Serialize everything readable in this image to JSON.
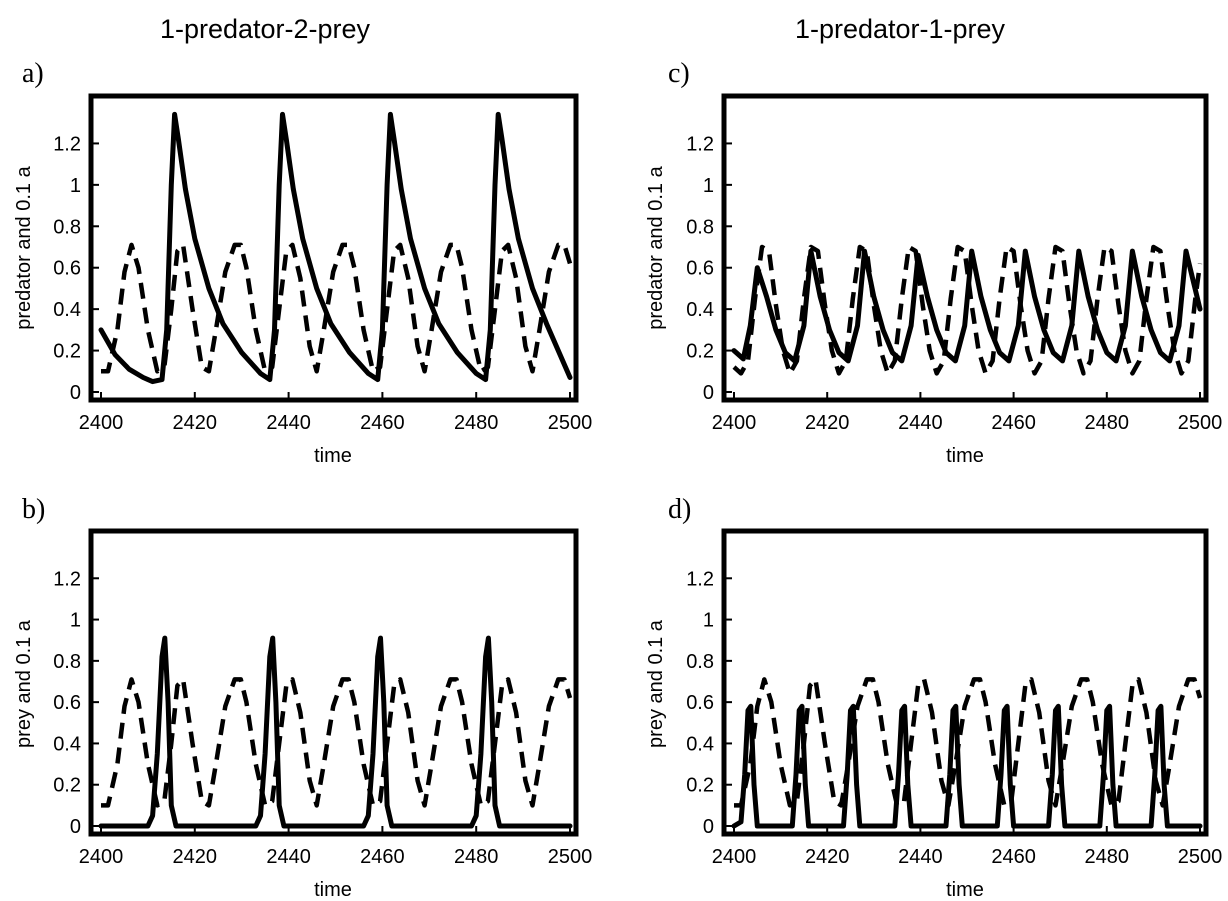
{
  "column_titles": [
    "1-predator-2-prey",
    "1-predator-1-prey"
  ],
  "chart_data": [
    {
      "panel": "a)",
      "type": "line",
      "xlabel": "time",
      "ylabel": "predator and 0.1 a",
      "xlim": [
        2400,
        2500
      ],
      "ylim": [
        0,
        1.4
      ],
      "xticks": [
        2400,
        2420,
        2440,
        2460,
        2480,
        2500
      ],
      "yticks": [
        0,
        0.2,
        0.4,
        0.6,
        0.8,
        1,
        1.2
      ],
      "grid": false,
      "series": [
        {
          "style": "solid",
          "x": [
            2400,
            2403,
            2406,
            2409,
            2411,
            2413,
            2414,
            2415,
            2415.7,
            2416.5,
            2418,
            2420,
            2423,
            2426,
            2430,
            2434,
            2436,
            2437,
            2438,
            2438.7,
            2439.5,
            2441,
            2443,
            2446,
            2449,
            2453,
            2457,
            2459,
            2460,
            2461,
            2461.7,
            2462.5,
            2464,
            2466,
            2469,
            2472,
            2476,
            2480,
            2482,
            2483,
            2484,
            2484.7,
            2485.5,
            2487,
            2489,
            2492,
            2495,
            2500
          ],
          "y": [
            0.3,
            0.18,
            0.11,
            0.07,
            0.05,
            0.06,
            0.3,
            1.0,
            1.34,
            1.22,
            0.98,
            0.74,
            0.5,
            0.33,
            0.19,
            0.09,
            0.06,
            0.3,
            1.0,
            1.34,
            1.22,
            0.98,
            0.74,
            0.5,
            0.33,
            0.19,
            0.09,
            0.06,
            0.3,
            1.0,
            1.34,
            1.22,
            0.98,
            0.74,
            0.5,
            0.33,
            0.19,
            0.09,
            0.06,
            0.3,
            1.0,
            1.34,
            1.22,
            0.98,
            0.74,
            0.5,
            0.33,
            0.07
          ]
        },
        {
          "style": "dashed",
          "x": [
            2400,
            2401.5,
            2403.5,
            2405,
            2406.5,
            2408,
            2410,
            2412,
            2413.5,
            2415,
            2416.3,
            2417.5,
            2419.5,
            2421.5,
            2423,
            2424.5,
            2426.5,
            2428.5,
            2429.8,
            2431,
            2433,
            2435,
            2436.5,
            2438,
            2439.5,
            2440.8,
            2442.5,
            2444.5,
            2446,
            2447.5,
            2449.5,
            2451.5,
            2452.8,
            2454,
            2456,
            2458,
            2459.5,
            2461,
            2462.5,
            2463.8,
            2465.5,
            2467.5,
            2469,
            2470.5,
            2472.5,
            2474.5,
            2475.8,
            2477,
            2479,
            2481,
            2482.5,
            2484,
            2485.5,
            2486.8,
            2488.5,
            2490.5,
            2492,
            2493.5,
            2495.5,
            2497.5,
            2498.8,
            2500
          ],
          "y": [
            0.1,
            0.1,
            0.3,
            0.58,
            0.71,
            0.6,
            0.3,
            0.1,
            0.12,
            0.4,
            0.68,
            0.71,
            0.4,
            0.12,
            0.1,
            0.3,
            0.58,
            0.71,
            0.71,
            0.6,
            0.3,
            0.1,
            0.12,
            0.4,
            0.68,
            0.71,
            0.55,
            0.22,
            0.1,
            0.3,
            0.58,
            0.71,
            0.71,
            0.6,
            0.3,
            0.1,
            0.12,
            0.4,
            0.68,
            0.71,
            0.55,
            0.22,
            0.1,
            0.3,
            0.58,
            0.71,
            0.71,
            0.6,
            0.3,
            0.1,
            0.12,
            0.4,
            0.68,
            0.71,
            0.55,
            0.22,
            0.1,
            0.3,
            0.58,
            0.71,
            0.71,
            0.62
          ]
        }
      ]
    },
    {
      "panel": "c)",
      "type": "line",
      "xlabel": "time",
      "ylabel": "predator and 0.1 a",
      "xlim": [
        2400,
        2500
      ],
      "ylim": [
        0,
        1.4
      ],
      "xticks": [
        2400,
        2420,
        2440,
        2460,
        2480,
        2500
      ],
      "yticks": [
        0,
        0.2,
        0.4,
        0.6,
        0.8,
        1,
        1.2
      ],
      "grid": false,
      "series": [
        {
          "style": "solid",
          "x": [
            2400,
            2402,
            2403.5,
            2405,
            2407,
            2409,
            2411,
            2413,
            2415,
            2416.5,
            2418.5,
            2420.5,
            2422.5,
            2424.5,
            2426.5,
            2428,
            2430,
            2432,
            2434,
            2436,
            2438,
            2439.5,
            2441.5,
            2443.5,
            2445.5,
            2447.5,
            2449.5,
            2451,
            2453,
            2455,
            2457,
            2459,
            2461,
            2462.5,
            2464.5,
            2466.5,
            2468.5,
            2470.5,
            2472.5,
            2474,
            2476,
            2478,
            2480,
            2482,
            2484,
            2485.5,
            2487.5,
            2489.5,
            2491.5,
            2493.5,
            2495.5,
            2497,
            2500
          ],
          "y": [
            0.2,
            0.16,
            0.32,
            0.6,
            0.46,
            0.3,
            0.19,
            0.15,
            0.32,
            0.68,
            0.46,
            0.3,
            0.19,
            0.15,
            0.32,
            0.68,
            0.46,
            0.3,
            0.19,
            0.15,
            0.32,
            0.66,
            0.46,
            0.3,
            0.19,
            0.15,
            0.32,
            0.68,
            0.46,
            0.3,
            0.19,
            0.15,
            0.32,
            0.68,
            0.46,
            0.3,
            0.19,
            0.15,
            0.32,
            0.68,
            0.46,
            0.3,
            0.19,
            0.15,
            0.32,
            0.68,
            0.46,
            0.3,
            0.19,
            0.15,
            0.32,
            0.68,
            0.4
          ]
        },
        {
          "style": "dashed",
          "x": [
            2400,
            2401.5,
            2403,
            2404.5,
            2406,
            2407.5,
            2409,
            2410.5,
            2412,
            2413.5,
            2415,
            2416.5,
            2418,
            2419.5,
            2421,
            2422.5,
            2424,
            2425.5,
            2427,
            2428.5,
            2430,
            2431.5,
            2433,
            2434.5,
            2436,
            2437.5,
            2439,
            2440.5,
            2442,
            2443.5,
            2445,
            2446.5,
            2448,
            2449.5,
            2451,
            2452.5,
            2454,
            2455.5,
            2457,
            2458.5,
            2460,
            2461.5,
            2463,
            2464.5,
            2466,
            2467.5,
            2469,
            2470.5,
            2472,
            2473.5,
            2475,
            2476.5,
            2478,
            2479.5,
            2481,
            2482.5,
            2484,
            2485.5,
            2487,
            2488.5,
            2490,
            2491.5,
            2493,
            2494.5,
            2496,
            2497.5,
            2499,
            2500
          ],
          "y": [
            0.12,
            0.09,
            0.15,
            0.45,
            0.7,
            0.68,
            0.42,
            0.2,
            0.09,
            0.15,
            0.45,
            0.7,
            0.68,
            0.42,
            0.2,
            0.09,
            0.15,
            0.45,
            0.7,
            0.68,
            0.42,
            0.2,
            0.09,
            0.15,
            0.45,
            0.7,
            0.68,
            0.42,
            0.2,
            0.09,
            0.15,
            0.45,
            0.7,
            0.68,
            0.42,
            0.2,
            0.09,
            0.15,
            0.45,
            0.7,
            0.68,
            0.42,
            0.2,
            0.09,
            0.15,
            0.45,
            0.7,
            0.68,
            0.42,
            0.2,
            0.09,
            0.15,
            0.45,
            0.7,
            0.68,
            0.42,
            0.2,
            0.09,
            0.15,
            0.45,
            0.7,
            0.68,
            0.42,
            0.2,
            0.09,
            0.15,
            0.45,
            0.62
          ]
        }
      ]
    },
    {
      "panel": "b)",
      "type": "line",
      "xlabel": "time",
      "ylabel": "prey and 0.1 a",
      "xlim": [
        2400,
        2500
      ],
      "ylim": [
        0,
        1.4
      ],
      "xticks": [
        2400,
        2420,
        2440,
        2460,
        2480,
        2500
      ],
      "yticks": [
        0,
        0.2,
        0.4,
        0.6,
        0.8,
        1,
        1.2
      ],
      "grid": false,
      "series": [
        {
          "style": "solid",
          "x": [
            2400,
            2410,
            2411,
            2412,
            2413,
            2413.6,
            2414.3,
            2415,
            2416,
            2433,
            2434,
            2435,
            2436,
            2436.6,
            2437.3,
            2438,
            2439,
            2456,
            2457,
            2458,
            2459,
            2459.6,
            2460.3,
            2461,
            2462,
            2479,
            2480,
            2481,
            2482,
            2482.6,
            2483.3,
            2484,
            2485,
            2500
          ],
          "y": [
            0,
            0,
            0.05,
            0.35,
            0.82,
            0.91,
            0.6,
            0.1,
            0,
            0,
            0.05,
            0.35,
            0.82,
            0.91,
            0.6,
            0.1,
            0,
            0,
            0.05,
            0.35,
            0.82,
            0.91,
            0.6,
            0.1,
            0,
            0,
            0.05,
            0.35,
            0.82,
            0.91,
            0.6,
            0.1,
            0,
            0
          ]
        },
        {
          "style": "dashed",
          "x": [
            2400,
            2401.5,
            2403.5,
            2405,
            2406.5,
            2408,
            2410,
            2412,
            2413.5,
            2415,
            2416.3,
            2417.5,
            2419.5,
            2421.5,
            2423,
            2424.5,
            2426.5,
            2428.5,
            2429.8,
            2431,
            2433,
            2435,
            2436.5,
            2438,
            2439.5,
            2440.8,
            2442.5,
            2444.5,
            2446,
            2447.5,
            2449.5,
            2451.5,
            2452.8,
            2454,
            2456,
            2458,
            2459.5,
            2461,
            2462.5,
            2463.8,
            2465.5,
            2467.5,
            2469,
            2470.5,
            2472.5,
            2474.5,
            2475.8,
            2477,
            2479,
            2481,
            2482.5,
            2484,
            2485.5,
            2486.8,
            2488.5,
            2490.5,
            2492,
            2493.5,
            2495.5,
            2497.5,
            2498.8,
            2500
          ],
          "y": [
            0.1,
            0.1,
            0.3,
            0.58,
            0.71,
            0.6,
            0.3,
            0.1,
            0.12,
            0.4,
            0.68,
            0.71,
            0.4,
            0.12,
            0.1,
            0.3,
            0.58,
            0.71,
            0.71,
            0.6,
            0.3,
            0.1,
            0.12,
            0.4,
            0.68,
            0.71,
            0.55,
            0.22,
            0.1,
            0.3,
            0.58,
            0.71,
            0.71,
            0.6,
            0.3,
            0.1,
            0.12,
            0.4,
            0.68,
            0.71,
            0.55,
            0.22,
            0.1,
            0.3,
            0.58,
            0.71,
            0.71,
            0.6,
            0.3,
            0.1,
            0.12,
            0.4,
            0.68,
            0.71,
            0.55,
            0.22,
            0.1,
            0.3,
            0.58,
            0.71,
            0.71,
            0.62
          ]
        }
      ]
    },
    {
      "panel": "d)",
      "type": "line",
      "xlabel": "time",
      "ylabel": "prey and 0.1 a",
      "xlim": [
        2400,
        2500
      ],
      "ylim": [
        0,
        1.4
      ],
      "xticks": [
        2400,
        2420,
        2440,
        2460,
        2480,
        2500
      ],
      "yticks": [
        0,
        0.2,
        0.4,
        0.6,
        0.8,
        1,
        1.2
      ],
      "grid": false,
      "series": [
        {
          "style": "solid",
          "x": [
            2400,
            2401.5,
            2402.3,
            2403,
            2403.6,
            2404.3,
            2405,
            2412.5,
            2413.3,
            2414,
            2414.6,
            2415.3,
            2416,
            2423.5,
            2424.3,
            2425,
            2425.6,
            2426.3,
            2427,
            2434.5,
            2435.3,
            2436,
            2436.6,
            2437.3,
            2438,
            2445.5,
            2446.3,
            2447,
            2447.6,
            2448.3,
            2449,
            2456.5,
            2457.3,
            2458,
            2458.6,
            2459.3,
            2460,
            2467.5,
            2468.3,
            2469,
            2469.6,
            2470.3,
            2471,
            2478.5,
            2479.3,
            2480,
            2480.6,
            2481.3,
            2482,
            2489.5,
            2490.3,
            2491,
            2491.6,
            2492.3,
            2493,
            2500
          ],
          "y": [
            0,
            0.02,
            0.25,
            0.56,
            0.58,
            0.2,
            0,
            0,
            0.25,
            0.56,
            0.58,
            0.2,
            0,
            0,
            0.25,
            0.56,
            0.58,
            0.2,
            0,
            0,
            0.25,
            0.56,
            0.58,
            0.2,
            0,
            0,
            0.25,
            0.56,
            0.58,
            0.2,
            0,
            0,
            0.25,
            0.56,
            0.58,
            0.2,
            0,
            0,
            0.25,
            0.56,
            0.58,
            0.2,
            0,
            0,
            0.25,
            0.56,
            0.58,
            0.2,
            0,
            0,
            0.25,
            0.56,
            0.58,
            0.2,
            0,
            0
          ]
        },
        {
          "style": "dashed",
          "x": [
            2400,
            2401.5,
            2403.5,
            2405,
            2406.5,
            2408,
            2410,
            2412,
            2413.5,
            2415,
            2416.3,
            2417.5,
            2419.5,
            2421.5,
            2423,
            2424.5,
            2426.5,
            2428.5,
            2429.8,
            2431,
            2433,
            2435,
            2436.5,
            2438,
            2439.5,
            2440.8,
            2442.5,
            2444.5,
            2446,
            2447.5,
            2449.5,
            2451.5,
            2452.8,
            2454,
            2456,
            2458,
            2459.5,
            2461,
            2462.5,
            2463.8,
            2465.5,
            2467.5,
            2469,
            2470.5,
            2472.5,
            2474.5,
            2475.8,
            2477,
            2479,
            2481,
            2482.5,
            2484,
            2485.5,
            2486.8,
            2488.5,
            2490.5,
            2492,
            2493.5,
            2495.5,
            2497.5,
            2498.8,
            2500
          ],
          "y": [
            0.1,
            0.1,
            0.3,
            0.58,
            0.71,
            0.6,
            0.3,
            0.1,
            0.12,
            0.4,
            0.68,
            0.71,
            0.4,
            0.12,
            0.1,
            0.3,
            0.58,
            0.71,
            0.71,
            0.6,
            0.3,
            0.1,
            0.12,
            0.4,
            0.68,
            0.71,
            0.55,
            0.22,
            0.1,
            0.3,
            0.58,
            0.71,
            0.71,
            0.6,
            0.3,
            0.1,
            0.12,
            0.4,
            0.68,
            0.71,
            0.55,
            0.22,
            0.1,
            0.3,
            0.58,
            0.71,
            0.71,
            0.6,
            0.3,
            0.1,
            0.12,
            0.4,
            0.68,
            0.71,
            0.55,
            0.22,
            0.1,
            0.3,
            0.58,
            0.71,
            0.71,
            0.62
          ]
        }
      ]
    }
  ]
}
